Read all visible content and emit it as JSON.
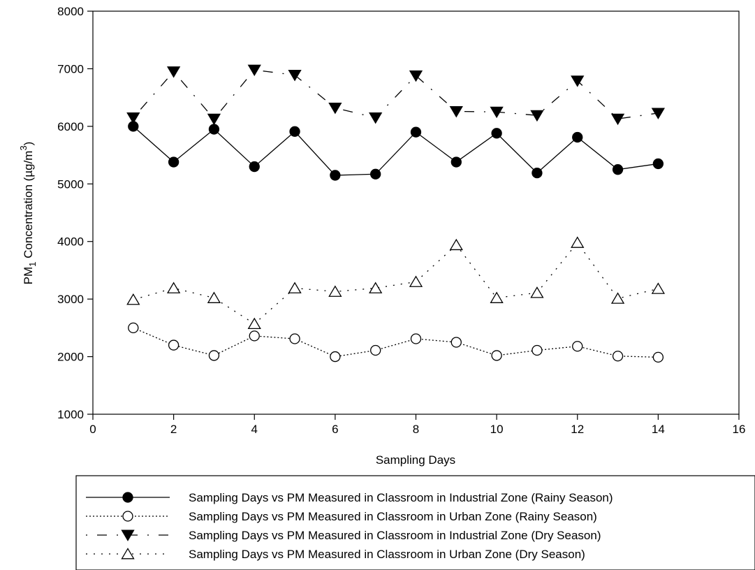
{
  "chart_data": {
    "type": "line",
    "xlabel": "Sampling Days",
    "ylabel": {
      "prefix": "PM",
      "sub": "1",
      "mid": " Concentration (µg/m",
      "sup": "3",
      "suffix": ")"
    },
    "xlim": [
      0,
      16
    ],
    "ylim": [
      1000,
      8000
    ],
    "xticks": [
      "0",
      "2",
      "4",
      "6",
      "8",
      "10",
      "12",
      "14",
      "16"
    ],
    "yticks": [
      "1000",
      "2000",
      "3000",
      "4000",
      "5000",
      "6000",
      "7000",
      "8000"
    ],
    "grid": false,
    "legend_position": "bottom",
    "x": [
      1,
      2,
      3,
      4,
      5,
      6,
      7,
      8,
      9,
      10,
      11,
      12,
      13,
      14
    ],
    "series": [
      {
        "name": "Sampling Days vs PM Measured in Classroom in Industrial Zone (Rainy Season)",
        "marker": "filled-circle",
        "line_style": "solid",
        "values": [
          6000,
          5380,
          5950,
          5300,
          5910,
          5150,
          5170,
          5900,
          5380,
          5880,
          5190,
          5810,
          5250,
          5350
        ]
      },
      {
        "name": "Sampling Days vs PM Measured in Classroom in Urban Zone (Rainy Season)",
        "marker": "open-circle",
        "line_style": "dotted",
        "values": [
          2500,
          2200,
          2020,
          2360,
          2310,
          2000,
          2110,
          2310,
          2250,
          2020,
          2110,
          2180,
          2010,
          1990
        ]
      },
      {
        "name": "Sampling Days vs PM Measured in Classroom in Industrial Zone (Dry Season)",
        "marker": "filled-triangle-down",
        "line_style": "dash-dot-sparse",
        "values": [
          6150,
          6950,
          6130,
          6980,
          6890,
          6320,
          6150,
          6880,
          6260,
          6250,
          6190,
          6790,
          6130,
          6230
        ]
      },
      {
        "name": "Sampling Days vs PM Measured in Classroom in Urban Zone (Dry Season)",
        "marker": "open-triangle-up",
        "line_style": "dotted-sparse",
        "values": [
          2990,
          3190,
          3020,
          2570,
          3190,
          3130,
          3190,
          3300,
          3940,
          3020,
          3110,
          3980,
          3010,
          3180
        ]
      }
    ]
  }
}
